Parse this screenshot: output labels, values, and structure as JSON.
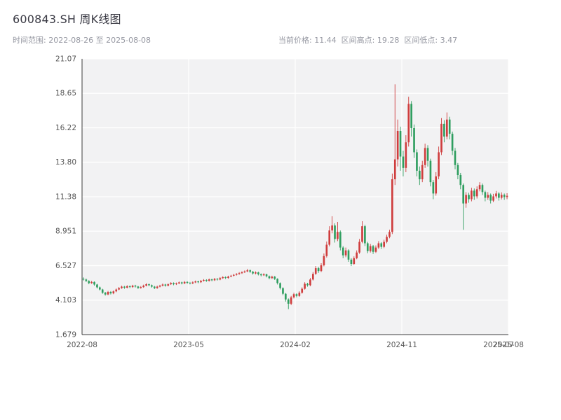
{
  "header": {
    "title": "600843.SH 周K线图",
    "time_range_label": "时间范围: 2022-08-26 至 2025-08-08",
    "stats_label": "当前价格: 11.44  区间高点: 19.28  区间低点: 3.47"
  },
  "chart_data": {
    "type": "candlestick",
    "symbol": "600843.SH",
    "interval": "weekly",
    "title": "600843.SH 周K线图",
    "start_date": "2022-08-26",
    "end_date": "2025-08-08",
    "current_price": 11.44,
    "range_high": 19.28,
    "range_low": 3.47,
    "ylim": [
      1.679,
      21.07
    ],
    "grid": true,
    "plot_bg": "#f2f2f3",
    "grid_color": "#ffffff",
    "spine_color": "#3c3c3c",
    "tick_label_color": "#555555",
    "up_color": "#cf3d3d",
    "down_color": "#2f9e5f",
    "y_ticks": [
      {
        "label": "1.679",
        "value": 1.679
      },
      {
        "label": "4.103",
        "value": 4.103
      },
      {
        "label": "6.527",
        "value": 6.527
      },
      {
        "label": "8.951",
        "value": 8.951
      },
      {
        "label": "11.38",
        "value": 11.375
      },
      {
        "label": "13.80",
        "value": 13.799
      },
      {
        "label": "16.22",
        "value": 16.223
      },
      {
        "label": "18.65",
        "value": 18.647
      },
      {
        "label": "21.07",
        "value": 21.07
      }
    ],
    "x_ticks": [
      {
        "label": "2022-08",
        "pos": 0.0,
        "grid": true
      },
      {
        "label": "2023-05",
        "pos": 0.25,
        "grid": true
      },
      {
        "label": "2024-02",
        "pos": 0.5,
        "grid": true
      },
      {
        "label": "2024-11",
        "pos": 0.75,
        "grid": true
      },
      {
        "label": "2025-07",
        "pos": 0.977,
        "grid": false
      },
      {
        "label": "2025-08",
        "pos": 1.0,
        "grid": true
      }
    ],
    "ohlc_format": "open,high,low,close (weekly)",
    "ohlc": [
      [
        5.6,
        5.7,
        5.48,
        5.55
      ],
      [
        5.55,
        5.62,
        5.38,
        5.45
      ],
      [
        5.45,
        5.5,
        5.22,
        5.3
      ],
      [
        5.3,
        5.45,
        5.25,
        5.38
      ],
      [
        5.38,
        5.42,
        5.12,
        5.2
      ],
      [
        5.2,
        5.25,
        4.92,
        5.0
      ],
      [
        5.0,
        5.06,
        4.78,
        4.85
      ],
      [
        4.85,
        4.9,
        4.55,
        4.62
      ],
      [
        4.62,
        4.68,
        4.42,
        4.5
      ],
      [
        4.5,
        4.75,
        4.45,
        4.68
      ],
      [
        4.68,
        4.74,
        4.5,
        4.58
      ],
      [
        4.58,
        4.78,
        4.52,
        4.72
      ],
      [
        4.72,
        4.92,
        4.66,
        4.85
      ],
      [
        4.85,
        5.02,
        4.8,
        4.95
      ],
      [
        4.95,
        5.12,
        4.9,
        5.05
      ],
      [
        5.05,
        5.1,
        4.9,
        4.98
      ],
      [
        4.98,
        5.15,
        4.93,
        5.08
      ],
      [
        5.08,
        5.14,
        4.95,
        5.02
      ],
      [
        5.02,
        5.18,
        4.97,
        5.12
      ],
      [
        5.12,
        5.18,
        4.99,
        5.06
      ],
      [
        5.06,
        5.1,
        4.89,
        4.96
      ],
      [
        4.96,
        5.09,
        4.91,
        5.02
      ],
      [
        5.02,
        5.19,
        4.97,
        5.12
      ],
      [
        5.12,
        5.29,
        5.07,
        5.22
      ],
      [
        5.22,
        5.27,
        5.08,
        5.15
      ],
      [
        5.15,
        5.2,
        4.98,
        5.05
      ],
      [
        5.05,
        5.1,
        4.88,
        4.95
      ],
      [
        4.95,
        5.12,
        4.9,
        5.05
      ],
      [
        5.05,
        5.18,
        5.0,
        5.12
      ],
      [
        5.12,
        5.27,
        5.07,
        5.2
      ],
      [
        5.2,
        5.25,
        5.05,
        5.12
      ],
      [
        5.12,
        5.28,
        5.07,
        5.22
      ],
      [
        5.22,
        5.36,
        5.17,
        5.3
      ],
      [
        5.3,
        5.35,
        5.15,
        5.22
      ],
      [
        5.22,
        5.34,
        5.17,
        5.28
      ],
      [
        5.28,
        5.41,
        5.23,
        5.35
      ],
      [
        5.35,
        5.4,
        5.21,
        5.28
      ],
      [
        5.28,
        5.44,
        5.23,
        5.38
      ],
      [
        5.38,
        5.43,
        5.25,
        5.32
      ],
      [
        5.32,
        5.38,
        5.21,
        5.28
      ],
      [
        5.28,
        5.42,
        5.23,
        5.35
      ],
      [
        5.35,
        5.48,
        5.3,
        5.42
      ],
      [
        5.42,
        5.47,
        5.29,
        5.36
      ],
      [
        5.36,
        5.52,
        5.31,
        5.46
      ],
      [
        5.46,
        5.58,
        5.41,
        5.52
      ],
      [
        5.52,
        5.57,
        5.39,
        5.46
      ],
      [
        5.46,
        5.62,
        5.41,
        5.56
      ],
      [
        5.56,
        5.61,
        5.43,
        5.5
      ],
      [
        5.5,
        5.66,
        5.45,
        5.6
      ],
      [
        5.6,
        5.65,
        5.48,
        5.55
      ],
      [
        5.55,
        5.72,
        5.5,
        5.65
      ],
      [
        5.65,
        5.78,
        5.6,
        5.72
      ],
      [
        5.72,
        5.77,
        5.59,
        5.66
      ],
      [
        5.66,
        5.82,
        5.61,
        5.76
      ],
      [
        5.76,
        5.88,
        5.71,
        5.82
      ],
      [
        5.82,
        5.94,
        5.77,
        5.88
      ],
      [
        5.88,
        6.0,
        5.83,
        5.94
      ],
      [
        5.94,
        6.07,
        5.89,
        6.0
      ],
      [
        6.0,
        6.13,
        5.95,
        6.06
      ],
      [
        6.06,
        6.19,
        6.01,
        6.12
      ],
      [
        6.12,
        6.3,
        6.07,
        6.2
      ],
      [
        6.2,
        6.26,
        6.02,
        6.1
      ],
      [
        6.1,
        6.15,
        5.9,
        5.98
      ],
      [
        5.98,
        6.12,
        5.92,
        6.05
      ],
      [
        6.05,
        6.1,
        5.84,
        5.92
      ],
      [
        5.92,
        5.98,
        5.77,
        5.85
      ],
      [
        5.85,
        5.99,
        5.8,
        5.92
      ],
      [
        5.92,
        5.96,
        5.7,
        5.78
      ],
      [
        5.78,
        5.83,
        5.57,
        5.65
      ],
      [
        5.65,
        5.82,
        5.6,
        5.75
      ],
      [
        5.75,
        5.8,
        5.52,
        5.6
      ],
      [
        5.6,
        5.64,
        5.2,
        5.3
      ],
      [
        5.3,
        5.35,
        4.85,
        4.95
      ],
      [
        4.95,
        5.0,
        4.45,
        4.55
      ],
      [
        4.55,
        4.6,
        4.0,
        4.15
      ],
      [
        4.15,
        4.22,
        3.47,
        3.85
      ],
      [
        3.85,
        4.4,
        3.75,
        4.3
      ],
      [
        4.3,
        4.62,
        4.22,
        4.52
      ],
      [
        4.52,
        4.58,
        4.3,
        4.4
      ],
      [
        4.4,
        4.72,
        4.34,
        4.62
      ],
      [
        4.62,
        5.0,
        4.56,
        4.9
      ],
      [
        4.9,
        5.36,
        4.84,
        5.25
      ],
      [
        5.25,
        5.32,
        5.05,
        5.15
      ],
      [
        5.15,
        5.66,
        5.08,
        5.55
      ],
      [
        5.55,
        6.08,
        5.48,
        5.95
      ],
      [
        5.95,
        6.5,
        5.88,
        6.35
      ],
      [
        6.35,
        6.44,
        6.02,
        6.15
      ],
      [
        6.15,
        6.7,
        6.08,
        6.55
      ],
      [
        6.55,
        7.38,
        6.48,
        7.2
      ],
      [
        7.2,
        8.22,
        7.1,
        8.0
      ],
      [
        8.0,
        9.3,
        7.88,
        9.0
      ],
      [
        9.0,
        10.0,
        8.8,
        9.35
      ],
      [
        9.35,
        9.5,
        8.15,
        8.4
      ],
      [
        8.4,
        9.6,
        8.25,
        8.9
      ],
      [
        8.9,
        9.0,
        7.6,
        7.8
      ],
      [
        7.8,
        7.9,
        7.05,
        7.25
      ],
      [
        7.25,
        7.8,
        7.12,
        7.6
      ],
      [
        7.6,
        7.68,
        6.8,
        6.95
      ],
      [
        6.95,
        7.05,
        6.5,
        6.65
      ],
      [
        6.65,
        7.18,
        6.58,
        7.05
      ],
      [
        7.05,
        7.6,
        6.98,
        7.45
      ],
      [
        7.45,
        8.4,
        7.36,
        8.2
      ],
      [
        8.2,
        9.65,
        8.1,
        9.3
      ],
      [
        9.3,
        9.4,
        7.9,
        8.1
      ],
      [
        8.1,
        8.2,
        7.4,
        7.55
      ],
      [
        7.55,
        8.05,
        7.45,
        7.9
      ],
      [
        7.9,
        7.98,
        7.35,
        7.5
      ],
      [
        7.5,
        7.95,
        7.42,
        7.8
      ],
      [
        7.8,
        8.25,
        7.7,
        8.1
      ],
      [
        8.1,
        8.18,
        7.7,
        7.85
      ],
      [
        7.85,
        8.35,
        7.76,
        8.2
      ],
      [
        8.2,
        8.7,
        8.1,
        8.55
      ],
      [
        8.55,
        9.05,
        8.45,
        8.9
      ],
      [
        8.9,
        13.0,
        8.75,
        12.6
      ],
      [
        12.6,
        19.28,
        12.2,
        14.0
      ],
      [
        14.0,
        16.8,
        13.5,
        16.0
      ],
      [
        16.0,
        16.3,
        13.2,
        14.2
      ],
      [
        14.2,
        14.6,
        12.8,
        13.4
      ],
      [
        13.4,
        15.7,
        13.1,
        15.2
      ],
      [
        15.2,
        18.4,
        14.9,
        17.9
      ],
      [
        17.9,
        18.1,
        15.6,
        16.2
      ],
      [
        16.2,
        16.45,
        14.1,
        14.5
      ],
      [
        14.5,
        14.7,
        12.8,
        13.2
      ],
      [
        13.2,
        13.5,
        12.2,
        12.6
      ],
      [
        12.6,
        13.9,
        12.4,
        13.6
      ],
      [
        13.6,
        15.1,
        13.4,
        14.8
      ],
      [
        14.8,
        15.0,
        13.5,
        13.9
      ],
      [
        13.9,
        14.05,
        12.1,
        12.4
      ],
      [
        12.4,
        12.55,
        11.2,
        11.6
      ],
      [
        11.6,
        13.1,
        11.45,
        12.8
      ],
      [
        12.8,
        14.9,
        12.6,
        14.5
      ],
      [
        14.5,
        16.9,
        14.3,
        16.5
      ],
      [
        16.5,
        16.75,
        15.2,
        15.6
      ],
      [
        15.6,
        17.3,
        15.4,
        16.8
      ],
      [
        16.8,
        17.0,
        15.4,
        15.8
      ],
      [
        15.8,
        15.95,
        14.3,
        14.6
      ],
      [
        14.6,
        14.8,
        13.3,
        13.6
      ],
      [
        13.6,
        13.75,
        12.6,
        12.9
      ],
      [
        12.9,
        13.05,
        11.9,
        12.2
      ],
      [
        12.2,
        12.3,
        9.05,
        10.9
      ],
      [
        10.9,
        11.7,
        10.6,
        11.5
      ],
      [
        11.5,
        11.65,
        10.95,
        11.2
      ],
      [
        11.2,
        12.0,
        11.05,
        11.8
      ],
      [
        11.8,
        11.95,
        11.15,
        11.4
      ],
      [
        11.4,
        12.1,
        11.25,
        11.9
      ],
      [
        11.9,
        12.4,
        11.75,
        12.2
      ],
      [
        12.2,
        12.3,
        11.5,
        11.7
      ],
      [
        11.7,
        11.8,
        11.05,
        11.3
      ],
      [
        11.3,
        11.7,
        11.15,
        11.5
      ],
      [
        11.5,
        11.6,
        10.9,
        11.1
      ],
      [
        11.1,
        11.58,
        11.0,
        11.4
      ],
      [
        11.4,
        11.78,
        11.25,
        11.6
      ],
      [
        11.6,
        11.7,
        11.1,
        11.3
      ],
      [
        11.3,
        11.68,
        11.18,
        11.5
      ],
      [
        11.5,
        11.6,
        11.15,
        11.35
      ],
      [
        11.35,
        11.62,
        11.2,
        11.44
      ]
    ]
  }
}
